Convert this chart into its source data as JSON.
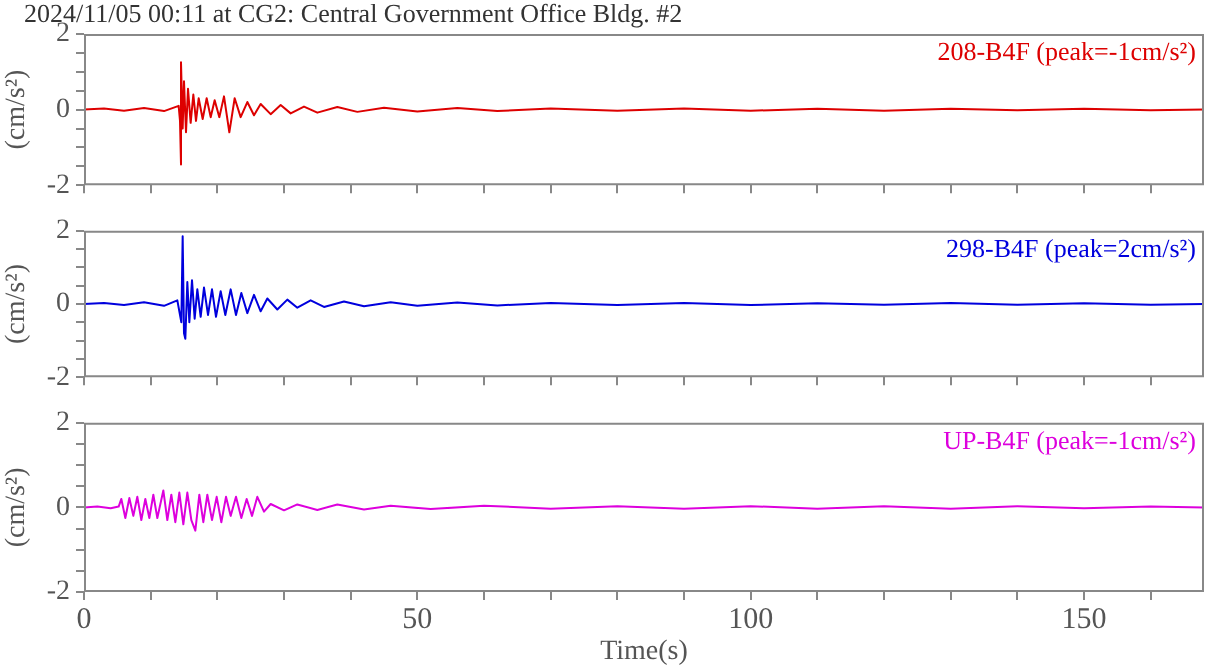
{
  "chart_data": [
    {
      "type": "line",
      "title": "2024/11/05 00:11 at CG2: Central Government Office Bldg. #2",
      "ylabel": "(cm/s²)",
      "xlim": [
        0,
        168
      ],
      "xticks": [
        0,
        {
          "value": 10,
          "label": null
        },
        {
          "value": 20,
          "label": null
        },
        {
          "value": 30,
          "label": null
        },
        {
          "value": 40,
          "label": null
        },
        50,
        {
          "value": 60,
          "label": null
        },
        {
          "value": 70,
          "label": null
        },
        {
          "value": 80,
          "label": null
        },
        {
          "value": 90,
          "label": null
        },
        100,
        {
          "value": 110,
          "label": null
        },
        {
          "value": 120,
          "label": null
        },
        {
          "value": 130,
          "label": null
        },
        {
          "value": 140,
          "label": null
        },
        150,
        {
          "value": 160,
          "label": null
        }
      ],
      "ylim": [
        -2,
        2
      ],
      "yticks": [
        -2,
        {
          "value": -1.5,
          "label": null
        },
        {
          "value": -1,
          "label": null
        },
        {
          "value": -0.5,
          "label": null
        },
        0,
        {
          "value": 0.5,
          "label": null
        },
        {
          "value": 1,
          "label": null
        },
        {
          "value": 1.5,
          "label": null
        },
        2
      ],
      "tick_labels": "y",
      "grid": false,
      "legend": false,
      "marker": "none",
      "line_style": "solid",
      "series": [
        {
          "name": "208-B4F (peak=-1cm/s²)",
          "color": "#dd0000",
          "x": [
            0,
            3,
            6,
            9,
            12,
            14.2,
            14.4,
            14.5,
            14.6,
            14.8,
            15.0,
            15.3,
            15.6,
            16,
            16.4,
            16.8,
            17.2,
            17.8,
            18.4,
            19,
            19.6,
            20.3,
            21,
            21.8,
            22.6,
            23.5,
            24.5,
            25.5,
            26.5,
            28,
            29.5,
            31,
            33,
            35,
            38,
            41,
            45,
            50,
            56,
            62,
            70,
            80,
            90,
            100,
            110,
            120,
            130,
            140,
            150,
            160,
            168
          ],
          "values": [
            0,
            0.03,
            -0.03,
            0.04,
            -0.04,
            0.1,
            -0.3,
            -1.45,
            1.25,
            -0.5,
            0.75,
            -0.6,
            0.55,
            -0.35,
            0.4,
            -0.3,
            0.3,
            -0.25,
            0.3,
            -0.2,
            0.25,
            -0.2,
            0.35,
            -0.6,
            0.3,
            -0.2,
            0.2,
            -0.15,
            0.15,
            -0.12,
            0.12,
            -0.1,
            0.08,
            -0.08,
            0.07,
            -0.06,
            0.05,
            -0.05,
            0.04,
            -0.04,
            0.03,
            -0.03,
            0.03,
            -0.03,
            0.02,
            -0.03,
            0.02,
            -0.02,
            0.02,
            -0.02,
            0
          ]
        }
      ]
    },
    {
      "type": "line",
      "ylabel": "(cm/s²)",
      "xlim": [
        0,
        168
      ],
      "xticks": [
        0,
        {
          "value": 10,
          "label": null
        },
        {
          "value": 20,
          "label": null
        },
        {
          "value": 30,
          "label": null
        },
        {
          "value": 40,
          "label": null
        },
        50,
        {
          "value": 60,
          "label": null
        },
        {
          "value": 70,
          "label": null
        },
        {
          "value": 80,
          "label": null
        },
        {
          "value": 90,
          "label": null
        },
        100,
        {
          "value": 110,
          "label": null
        },
        {
          "value": 120,
          "label": null
        },
        {
          "value": 130,
          "label": null
        },
        {
          "value": 140,
          "label": null
        },
        150,
        {
          "value": 160,
          "label": null
        }
      ],
      "ylim": [
        -2,
        2
      ],
      "yticks": [
        -2,
        {
          "value": -1.5,
          "label": null
        },
        {
          "value": -1,
          "label": null
        },
        {
          "value": -0.5,
          "label": null
        },
        0,
        {
          "value": 0.5,
          "label": null
        },
        {
          "value": 1,
          "label": null
        },
        {
          "value": 1.5,
          "label": null
        },
        2
      ],
      "tick_labels": "y",
      "grid": false,
      "legend": false,
      "marker": "none",
      "line_style": "solid",
      "series": [
        {
          "name": "298-B4F (peak=2cm/s²)",
          "color": "#0000dd",
          "x": [
            0,
            3,
            6,
            9,
            12,
            14,
            14.6,
            14.8,
            15.0,
            15.2,
            15.5,
            15.8,
            16.2,
            16.6,
            17,
            17.5,
            18,
            18.6,
            19.2,
            19.8,
            20.5,
            21.2,
            22,
            22.8,
            23.6,
            24.5,
            25.5,
            26.5,
            27.5,
            29,
            30.5,
            32,
            34,
            36,
            39,
            42,
            46,
            50,
            56,
            62,
            70,
            80,
            90,
            100,
            110,
            120,
            130,
            140,
            150,
            160,
            168
          ],
          "values": [
            0,
            0.03,
            -0.03,
            0.05,
            -0.05,
            0.1,
            -0.5,
            1.85,
            -0.8,
            -0.95,
            0.6,
            -0.5,
            0.65,
            -0.4,
            0.4,
            -0.35,
            0.45,
            -0.3,
            0.4,
            -0.35,
            0.35,
            -0.3,
            0.4,
            -0.3,
            0.3,
            -0.25,
            0.25,
            -0.2,
            0.15,
            -0.15,
            0.12,
            -0.1,
            0.1,
            -0.08,
            0.07,
            -0.06,
            0.05,
            -0.05,
            0.04,
            -0.04,
            0.03,
            -0.03,
            0.03,
            -0.03,
            0.02,
            -0.02,
            0.03,
            -0.02,
            0.02,
            -0.02,
            0
          ]
        }
      ]
    },
    {
      "type": "line",
      "xlabel": "Time(s)",
      "ylabel": "(cm/s²)",
      "xlim": [
        0,
        168
      ],
      "xticks": [
        0,
        {
          "value": 10,
          "label": null
        },
        {
          "value": 20,
          "label": null
        },
        {
          "value": 30,
          "label": null
        },
        {
          "value": 40,
          "label": null
        },
        50,
        {
          "value": 60,
          "label": null
        },
        {
          "value": 70,
          "label": null
        },
        {
          "value": 80,
          "label": null
        },
        {
          "value": 90,
          "label": null
        },
        100,
        {
          "value": 110,
          "label": null
        },
        {
          "value": 120,
          "label": null
        },
        {
          "value": 130,
          "label": null
        },
        {
          "value": 140,
          "label": null
        },
        150,
        {
          "value": 160,
          "label": null
        }
      ],
      "ylim": [
        -2,
        2
      ],
      "yticks": [
        -2,
        {
          "value": -1.5,
          "label": null
        },
        {
          "value": -1,
          "label": null
        },
        {
          "value": -0.5,
          "label": null
        },
        0,
        {
          "value": 0.5,
          "label": null
        },
        {
          "value": 1,
          "label": null
        },
        {
          "value": 1.5,
          "label": null
        },
        2
      ],
      "grid": false,
      "legend": false,
      "marker": "none",
      "line_style": "solid",
      "series": [
        {
          "name": "UP-B4F (peak=-1cm/s²)",
          "color": "#dd00dd",
          "x": [
            0,
            2,
            4,
            5.2,
            5.6,
            6.2,
            6.8,
            7.4,
            8,
            8.6,
            9.2,
            9.8,
            10.4,
            11,
            11.9,
            12.5,
            13.1,
            13.7,
            14.3,
            14.9,
            15.5,
            16.1,
            16.7,
            17.3,
            17.9,
            18.5,
            19.2,
            19.9,
            20.6,
            21.3,
            22,
            22.8,
            23.6,
            24.4,
            25.2,
            26,
            27,
            28,
            30,
            32,
            35,
            38,
            42,
            46,
            52,
            60,
            70,
            80,
            90,
            100,
            110,
            120,
            130,
            140,
            150,
            160,
            168
          ],
          "values": [
            0,
            0.02,
            -0.02,
            0.02,
            0.2,
            -0.25,
            0.22,
            -0.2,
            0.25,
            -0.3,
            0.2,
            -0.25,
            0.3,
            -0.25,
            0.4,
            -0.3,
            0.3,
            -0.35,
            0.35,
            -0.4,
            0.35,
            -0.3,
            -0.55,
            0.3,
            -0.35,
            0.3,
            -0.3,
            0.25,
            -0.35,
            0.25,
            -0.2,
            0.25,
            -0.25,
            0.2,
            -0.2,
            0.25,
            -0.1,
            0.08,
            -0.07,
            0.07,
            -0.06,
            0.07,
            -0.05,
            0.04,
            -0.04,
            0.04,
            -0.03,
            0.03,
            -0.03,
            0.03,
            -0.03,
            0.03,
            -0.03,
            0.03,
            -0.02,
            0.02,
            0
          ]
        }
      ]
    }
  ]
}
